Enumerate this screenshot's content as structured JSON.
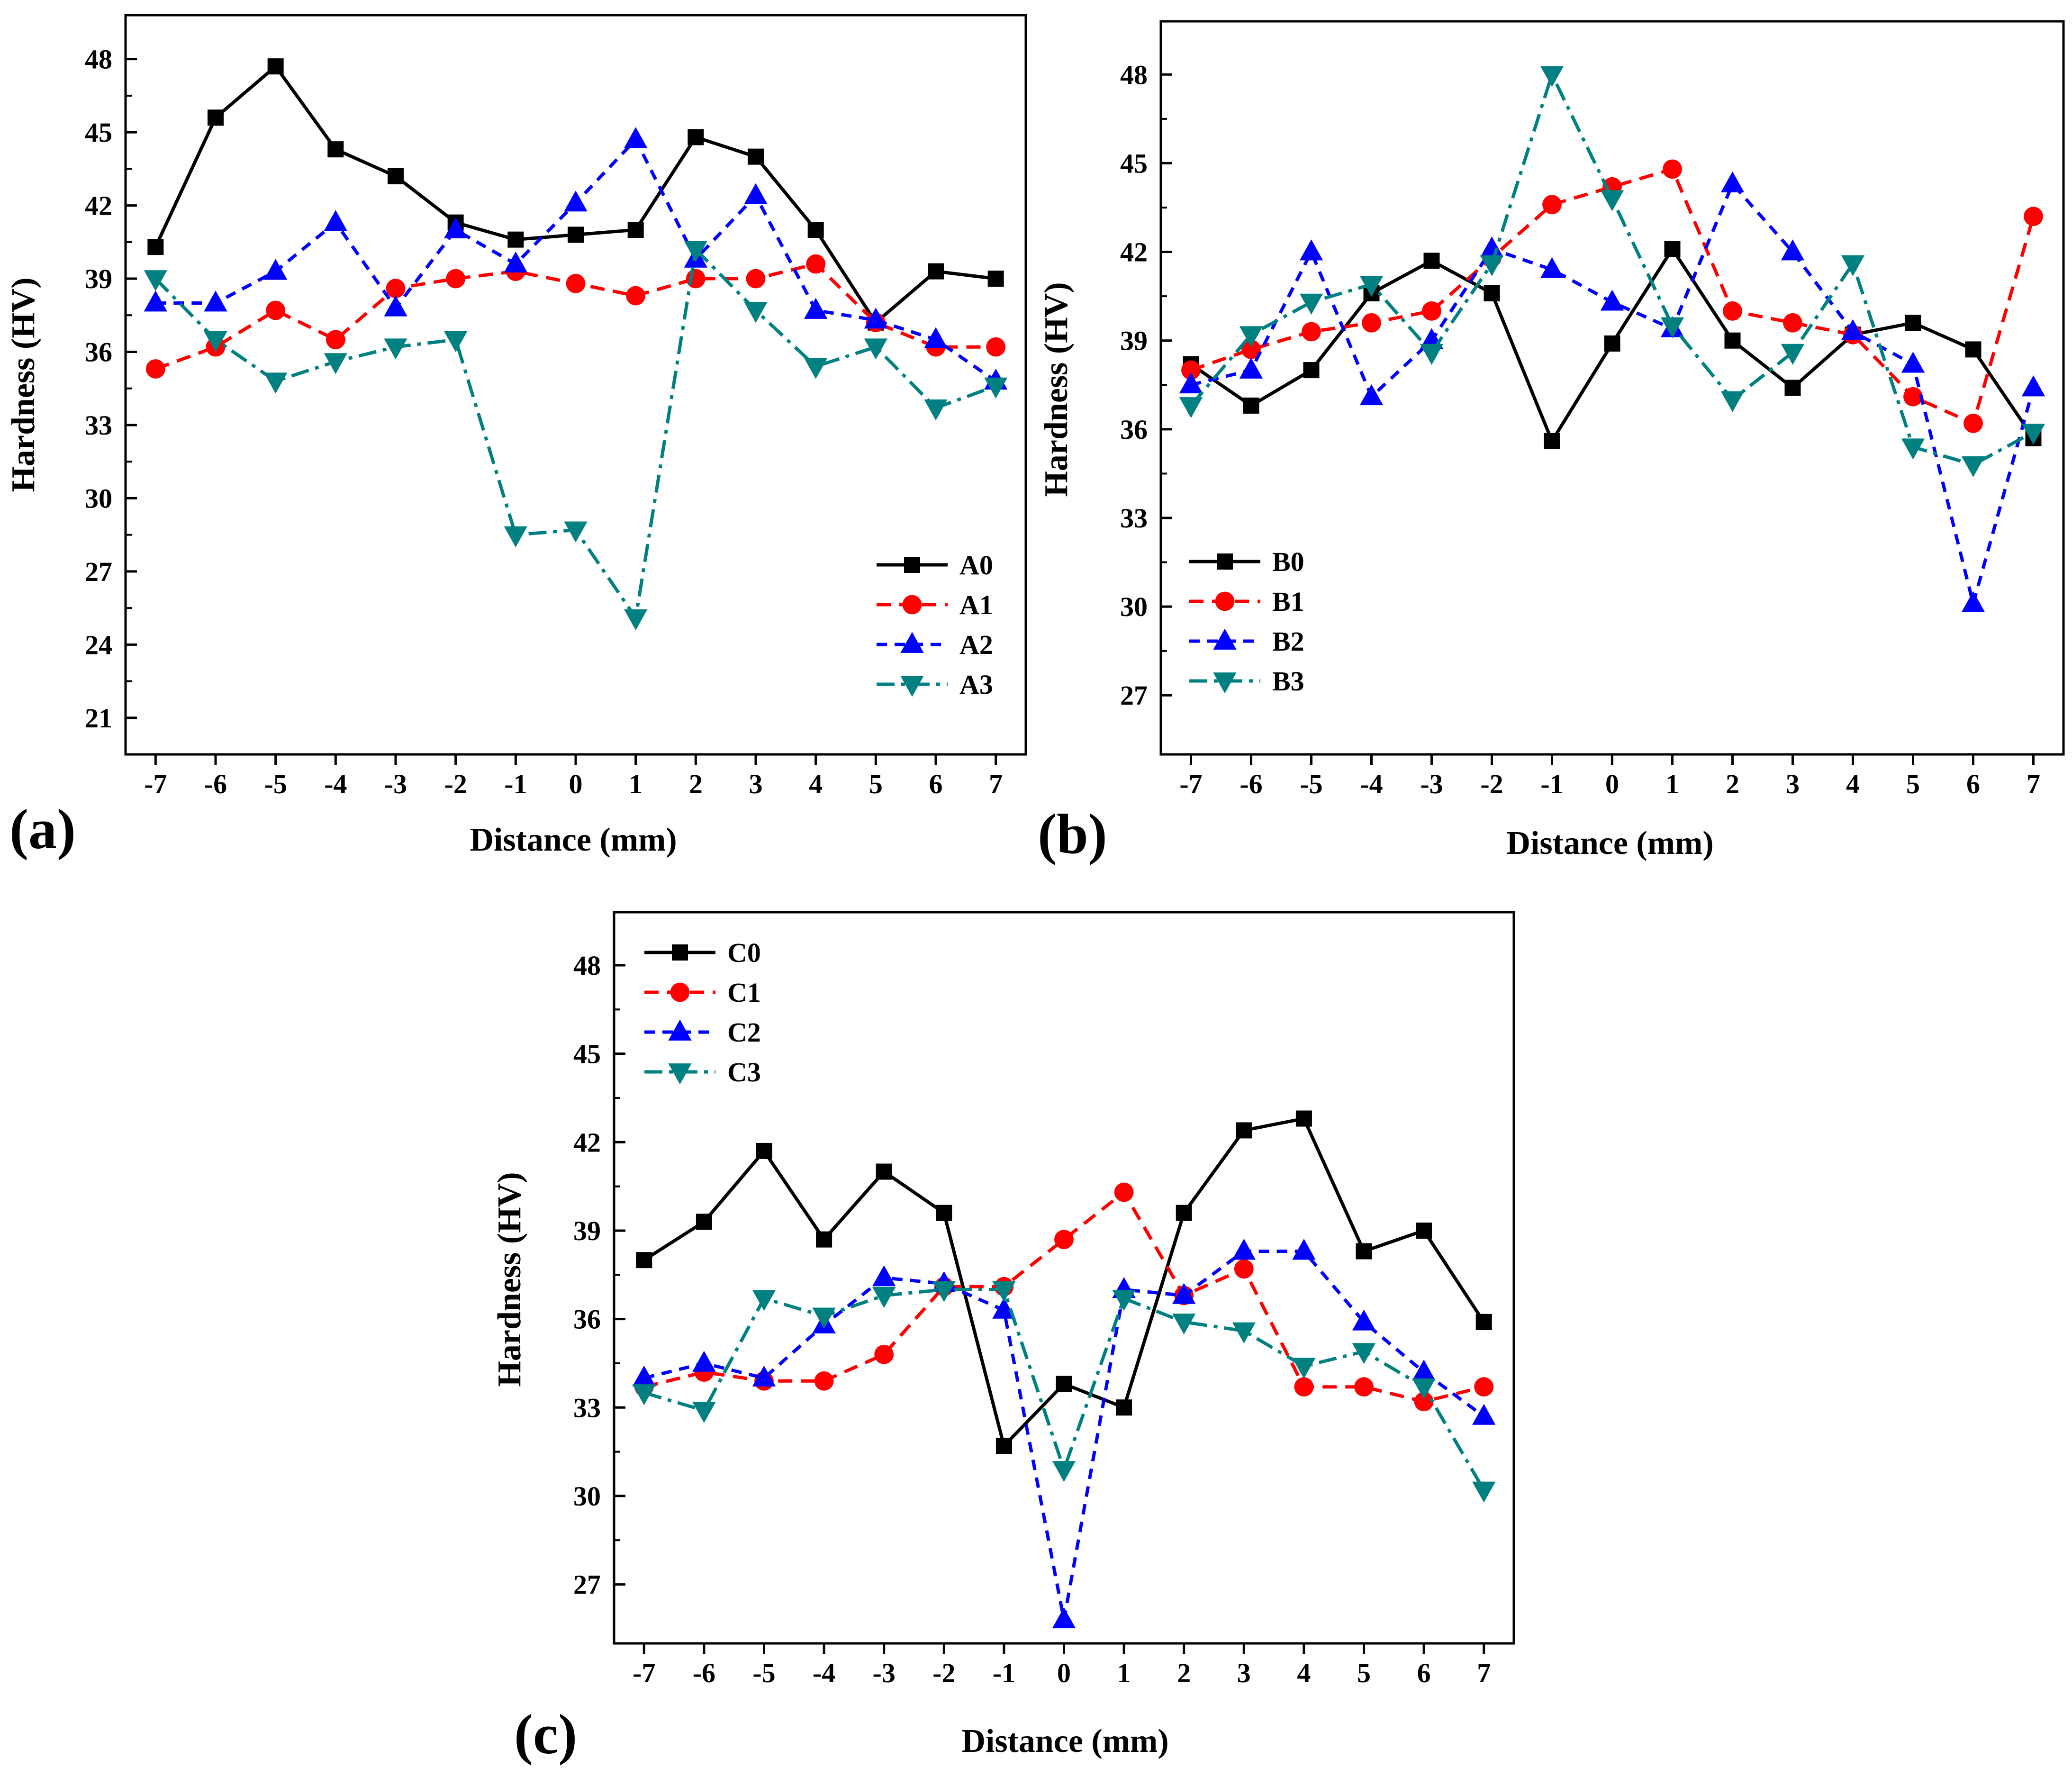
{
  "figure_colors": {
    "S0": "#000000",
    "S1": "#ff0000",
    "S2": "#0000ff",
    "S3": "#008080"
  },
  "chart_data": [
    {
      "type": "line",
      "panel_label": "(a)",
      "xlabel": "Distance (mm)",
      "ylabel": "Hardness (HV)",
      "x": [
        -7,
        -6,
        -5,
        -4,
        -3,
        -2,
        -1,
        0,
        1,
        2,
        3,
        4,
        5,
        6,
        7
      ],
      "xticks": [
        -7,
        -6,
        -5,
        -4,
        -3,
        -2,
        -1,
        0,
        1,
        2,
        3,
        4,
        5,
        6,
        7
      ],
      "xlim": [
        -7.5,
        7.5
      ],
      "yticks": [
        21,
        24,
        27,
        30,
        33,
        36,
        39,
        42,
        45,
        48
      ],
      "ylim": [
        19.5,
        49.8
      ],
      "legend_position": "bottom-right",
      "series": [
        {
          "name": "A0",
          "marker": "square",
          "dash": "solid",
          "color": "#000000",
          "values": [
            40.3,
            45.6,
            47.7,
            44.3,
            43.2,
            41.3,
            40.6,
            40.8,
            41.0,
            44.8,
            44.0,
            41.0,
            37.2,
            39.3,
            39.0
          ]
        },
        {
          "name": "A1",
          "marker": "circle",
          "dash": "dash",
          "color": "#ff0000",
          "values": [
            35.3,
            36.2,
            37.7,
            36.5,
            38.6,
            39.0,
            39.3,
            38.8,
            38.3,
            39.0,
            39.0,
            39.6,
            37.2,
            36.2,
            36.2
          ]
        },
        {
          "name": "A2",
          "marker": "triangle-up",
          "dash": "shortdash",
          "color": "#0000ff",
          "values": [
            38.0,
            38.0,
            39.3,
            41.3,
            37.8,
            41.0,
            39.6,
            42.1,
            44.7,
            39.8,
            42.4,
            37.7,
            37.3,
            36.5,
            34.8
          ]
        },
        {
          "name": "A3",
          "marker": "triangle-down",
          "dash": "dashdot",
          "color": "#008080",
          "values": [
            39.0,
            36.5,
            34.8,
            35.6,
            36.2,
            36.5,
            28.5,
            28.7,
            25.1,
            40.2,
            37.7,
            35.4,
            36.2,
            33.7,
            34.6
          ]
        }
      ]
    },
    {
      "type": "line",
      "panel_label": "(b)",
      "xlabel": "Distance (mm)",
      "ylabel": "Hardness (HV)",
      "x": [
        -7,
        -6,
        -5,
        -4,
        -3,
        -2,
        -1,
        0,
        1,
        2,
        3,
        4,
        5,
        6,
        7
      ],
      "xticks": [
        -7,
        -6,
        -5,
        -4,
        -3,
        -2,
        -1,
        0,
        1,
        2,
        3,
        4,
        5,
        6,
        7
      ],
      "xlim": [
        -7.5,
        7.5
      ],
      "yticks": [
        27,
        30,
        33,
        36,
        39,
        42,
        45,
        48
      ],
      "ylim": [
        25.0,
        49.8
      ],
      "legend_position": "bottom-left",
      "series": [
        {
          "name": "B0",
          "marker": "square",
          "dash": "solid",
          "color": "#000000",
          "values": [
            38.2,
            36.8,
            38.0,
            40.6,
            41.7,
            40.6,
            35.6,
            38.9,
            42.1,
            39.0,
            37.4,
            39.2,
            39.6,
            38.7,
            35.7
          ]
        },
        {
          "name": "B1",
          "marker": "circle",
          "dash": "dash",
          "color": "#ff0000",
          "values": [
            38.0,
            38.7,
            39.3,
            39.6,
            40.0,
            41.8,
            43.6,
            44.2,
            44.8,
            40.0,
            39.6,
            39.2,
            37.1,
            36.2,
            43.2
          ]
        },
        {
          "name": "B2",
          "marker": "triangle-up",
          "dash": "shortdash",
          "color": "#0000ff",
          "values": [
            37.5,
            38.0,
            42.0,
            37.1,
            39.0,
            42.1,
            41.4,
            40.3,
            39.4,
            44.3,
            42.0,
            39.3,
            38.2,
            30.1,
            37.4
          ]
        },
        {
          "name": "B3",
          "marker": "triangle-down",
          "dash": "dashdot",
          "color": "#008080",
          "values": [
            36.8,
            39.2,
            40.3,
            40.9,
            38.6,
            41.6,
            48.0,
            43.8,
            39.5,
            37.0,
            38.6,
            41.6,
            35.4,
            34.8,
            35.9
          ]
        }
      ]
    },
    {
      "type": "line",
      "panel_label": "(c)",
      "xlabel": "Distance (mm)",
      "ylabel": "Hardness (HV)",
      "x": [
        -7,
        -6,
        -5,
        -4,
        -3,
        -2,
        -1,
        0,
        1,
        2,
        3,
        4,
        5,
        6,
        7
      ],
      "xticks": [
        -7,
        -6,
        -5,
        -4,
        -3,
        -2,
        -1,
        0,
        1,
        2,
        3,
        4,
        5,
        6,
        7
      ],
      "xlim": [
        -7.5,
        7.5
      ],
      "yticks": [
        27,
        30,
        33,
        36,
        39,
        42,
        45,
        48
      ],
      "ylim": [
        25.0,
        49.8
      ],
      "legend_position": "top-left",
      "series": [
        {
          "name": "C0",
          "marker": "square",
          "dash": "solid",
          "color": "#000000",
          "values": [
            38.0,
            39.3,
            41.7,
            38.7,
            41.0,
            39.6,
            31.7,
            33.8,
            33.0,
            39.6,
            42.4,
            42.8,
            38.3,
            39.0,
            35.9
          ]
        },
        {
          "name": "C1",
          "marker": "circle",
          "dash": "dash",
          "color": "#ff0000",
          "values": [
            33.7,
            34.2,
            33.9,
            33.9,
            34.8,
            37.1,
            37.1,
            38.7,
            40.3,
            36.8,
            37.7,
            33.7,
            33.7,
            33.2,
            33.7
          ]
        },
        {
          "name": "C2",
          "marker": "triangle-up",
          "dash": "shortdash",
          "color": "#0000ff",
          "values": [
            34.0,
            34.5,
            34.0,
            35.8,
            37.4,
            37.2,
            36.3,
            25.8,
            37.0,
            36.8,
            38.3,
            38.3,
            35.9,
            34.2,
            32.7
          ]
        },
        {
          "name": "C3",
          "marker": "triangle-down",
          "dash": "dashdot",
          "color": "#008080",
          "values": [
            33.5,
            32.9,
            36.7,
            36.1,
            36.8,
            37.0,
            37.0,
            30.9,
            36.7,
            35.9,
            35.6,
            34.4,
            34.9,
            33.7,
            30.2
          ]
        }
      ]
    }
  ]
}
